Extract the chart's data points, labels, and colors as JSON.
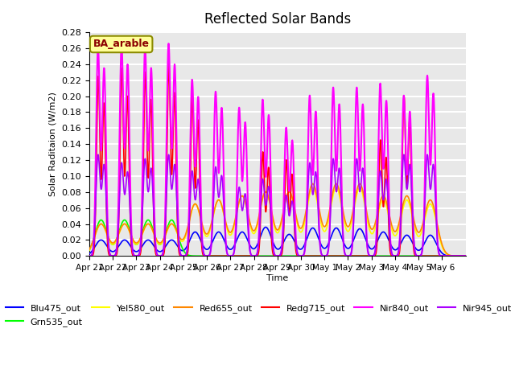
{
  "title": "Reflected Solar Bands",
  "xlabel": "Time",
  "ylabel_actual": "Solar Raditaion (W/m2)",
  "ylim": [
    0.0,
    0.28
  ],
  "yticks": [
    0.0,
    0.02,
    0.04,
    0.06,
    0.08,
    0.1,
    0.12,
    0.14,
    0.16,
    0.18,
    0.2,
    0.22,
    0.24,
    0.26,
    0.28
  ],
  "xtick_labels": [
    "Apr 21",
    "Apr 22",
    "Apr 23",
    "Apr 24",
    "Apr 25",
    "Apr 26",
    "Apr 27",
    "Apr 28",
    "Apr 29",
    "Apr 30",
    "May 1",
    "May 2",
    "May 3",
    "May 4",
    "May 5",
    "May 6"
  ],
  "site_label": "BA_arable",
  "series": {
    "Blu475_out": {
      "color": "#0000FF",
      "linewidth": 1.2
    },
    "Grn535_out": {
      "color": "#00FF00",
      "linewidth": 1.2
    },
    "Yel580_out": {
      "color": "#FFFF00",
      "linewidth": 1.2
    },
    "Red655_out": {
      "color": "#FF8800",
      "linewidth": 1.2
    },
    "Redg715_out": {
      "color": "#FF0000",
      "linewidth": 1.2
    },
    "Nir840_out": {
      "color": "#FF00FF",
      "linewidth": 1.5
    },
    "Nir945_out": {
      "color": "#AA00FF",
      "linewidth": 1.2
    }
  },
  "bg_color": "#E8E8E8",
  "grid_color": "#FFFFFF",
  "n_days": 16,
  "peaks_nir840": [
    0.26,
    0.265,
    0.26,
    0.265,
    0.22,
    0.205,
    0.185,
    0.195,
    0.16,
    0.2,
    0.21,
    0.21,
    0.215,
    0.2,
    0.225,
    0.0
  ],
  "peaks_nir945": [
    0.125,
    0.115,
    0.12,
    0.125,
    0.105,
    0.11,
    0.085,
    0.095,
    0.075,
    0.115,
    0.12,
    0.12,
    0.105,
    0.125,
    0.125,
    0.0
  ],
  "peaks_redg715": [
    0.225,
    0.235,
    0.23,
    0.24,
    0.2,
    0.0,
    0.0,
    0.13,
    0.12,
    0.0,
    0.0,
    0.0,
    0.145,
    0.2,
    0.0,
    0.0
  ],
  "peaks_red655": [
    0.04,
    0.04,
    0.04,
    0.04,
    0.065,
    0.07,
    0.075,
    0.08,
    0.08,
    0.09,
    0.09,
    0.09,
    0.075,
    0.075,
    0.07,
    0.0
  ],
  "peaks_yel580": [
    0.04,
    0.04,
    0.04,
    0.04,
    0.065,
    0.07,
    0.075,
    0.08,
    0.08,
    0.085,
    0.085,
    0.085,
    0.07,
    0.07,
    0.065,
    0.0
  ],
  "peaks_grn535": [
    0.045,
    0.045,
    0.045,
    0.045,
    0.0,
    0.0,
    0.0,
    0.0,
    0.0,
    0.0,
    0.0,
    0.0,
    0.0,
    0.0,
    0.0,
    0.0
  ],
  "peaks_blu475": [
    0.02,
    0.02,
    0.02,
    0.02,
    0.03,
    0.03,
    0.03,
    0.036,
    0.027,
    0.035,
    0.035,
    0.034,
    0.03,
    0.026,
    0.026,
    0.0
  ]
}
